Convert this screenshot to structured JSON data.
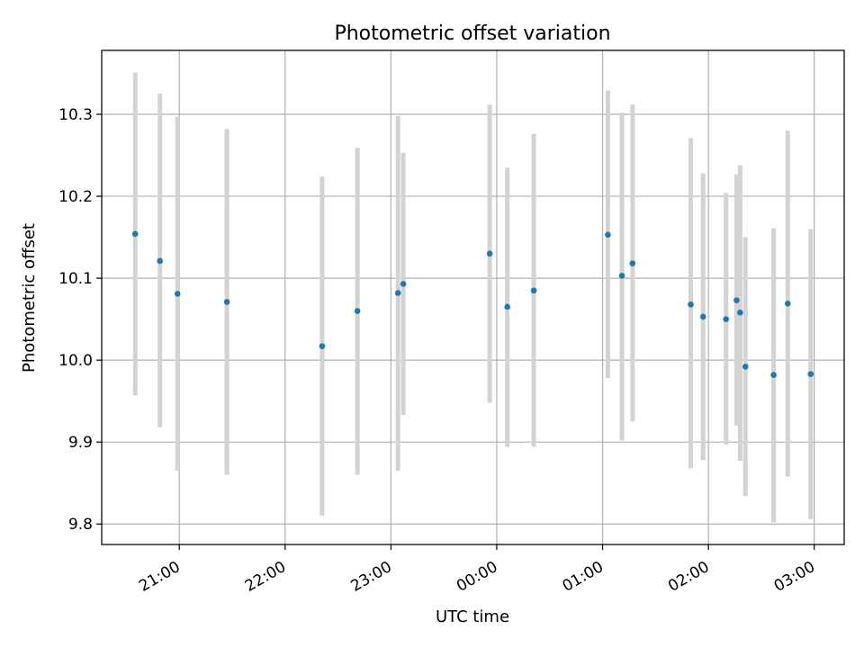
{
  "chart_data": {
    "type": "scatter",
    "title": "Photometric offset variation",
    "xlabel": "UTC time",
    "ylabel": "Photometric offset",
    "x_unit": "UTC",
    "grid": true,
    "colors": {
      "point": "#1f77b4",
      "errorbar": "#d3d3d3",
      "grid": "#b0b0b0"
    },
    "xlim": [
      "2023-01-01T20:16",
      "2023-01-02T03:17"
    ],
    "ylim": [
      9.775,
      10.378
    ],
    "x_ticks": [
      {
        "time": "2023-01-01T21:00",
        "label": "21:00"
      },
      {
        "time": "2023-01-01T22:00",
        "label": "22:00"
      },
      {
        "time": "2023-01-01T23:00",
        "label": "23:00"
      },
      {
        "time": "2023-01-02T00:00",
        "label": "00:00"
      },
      {
        "time": "2023-01-02T01:00",
        "label": "01:00"
      },
      {
        "time": "2023-01-02T02:00",
        "label": "02:00"
      },
      {
        "time": "2023-01-02T03:00",
        "label": "03:00"
      }
    ],
    "y_ticks": [
      {
        "value": 9.8,
        "label": "9.8"
      },
      {
        "value": 9.9,
        "label": "9.9"
      },
      {
        "value": 10.0,
        "label": "10.0"
      },
      {
        "value": 10.1,
        "label": "10.1"
      },
      {
        "value": 10.2,
        "label": "10.2"
      },
      {
        "value": 10.3,
        "label": "10.3"
      }
    ],
    "points": [
      {
        "time": "2023-01-01T20:35",
        "y": 10.154,
        "err_low": 9.957,
        "err_high": 10.351
      },
      {
        "time": "2023-01-01T20:49",
        "y": 10.121,
        "err_low": 9.918,
        "err_high": 10.325
      },
      {
        "time": "2023-01-01T20:59",
        "y": 10.081,
        "err_low": 9.865,
        "err_high": 10.297
      },
      {
        "time": "2023-01-01T21:27",
        "y": 10.071,
        "err_low": 9.86,
        "err_high": 10.282
      },
      {
        "time": "2023-01-01T22:21",
        "y": 10.017,
        "err_low": 9.81,
        "err_high": 10.224
      },
      {
        "time": "2023-01-01T22:41",
        "y": 10.06,
        "err_low": 9.86,
        "err_high": 10.259
      },
      {
        "time": "2023-01-01T23:04",
        "y": 10.082,
        "err_low": 9.865,
        "err_high": 10.298
      },
      {
        "time": "2023-01-01T23:07",
        "y": 10.093,
        "err_low": 9.933,
        "err_high": 10.253
      },
      {
        "time": "2023-01-01T23:56",
        "y": 10.13,
        "err_low": 9.948,
        "err_high": 10.312
      },
      {
        "time": "2023-01-02T00:06",
        "y": 10.065,
        "err_low": 9.894,
        "err_high": 10.235
      },
      {
        "time": "2023-01-02T00:21",
        "y": 10.085,
        "err_low": 9.894,
        "err_high": 10.276
      },
      {
        "time": "2023-01-02T01:03",
        "y": 10.153,
        "err_low": 9.978,
        "err_high": 10.329
      },
      {
        "time": "2023-01-02T01:11",
        "y": 10.103,
        "err_low": 9.902,
        "err_high": 10.302
      },
      {
        "time": "2023-01-02T01:17",
        "y": 10.118,
        "err_low": 9.925,
        "err_high": 10.312
      },
      {
        "time": "2023-01-02T01:50",
        "y": 10.068,
        "err_low": 9.868,
        "err_high": 10.271
      },
      {
        "time": "2023-01-02T01:57",
        "y": 10.053,
        "err_low": 9.878,
        "err_high": 10.228
      },
      {
        "time": "2023-01-02T02:10",
        "y": 10.05,
        "err_low": 9.897,
        "err_high": 10.204
      },
      {
        "time": "2023-01-02T02:16",
        "y": 10.073,
        "err_low": 9.92,
        "err_high": 10.227
      },
      {
        "time": "2023-01-02T02:18",
        "y": 10.058,
        "err_low": 9.877,
        "err_high": 10.238
      },
      {
        "time": "2023-01-02T02:21",
        "y": 9.992,
        "err_low": 9.834,
        "err_high": 10.15
      },
      {
        "time": "2023-01-02T02:37",
        "y": 9.982,
        "err_low": 9.802,
        "err_high": 10.161
      },
      {
        "time": "2023-01-02T02:45",
        "y": 10.069,
        "err_low": 9.858,
        "err_high": 10.28
      },
      {
        "time": "2023-01-02T02:58",
        "y": 9.983,
        "err_low": 9.806,
        "err_high": 10.16
      }
    ]
  }
}
